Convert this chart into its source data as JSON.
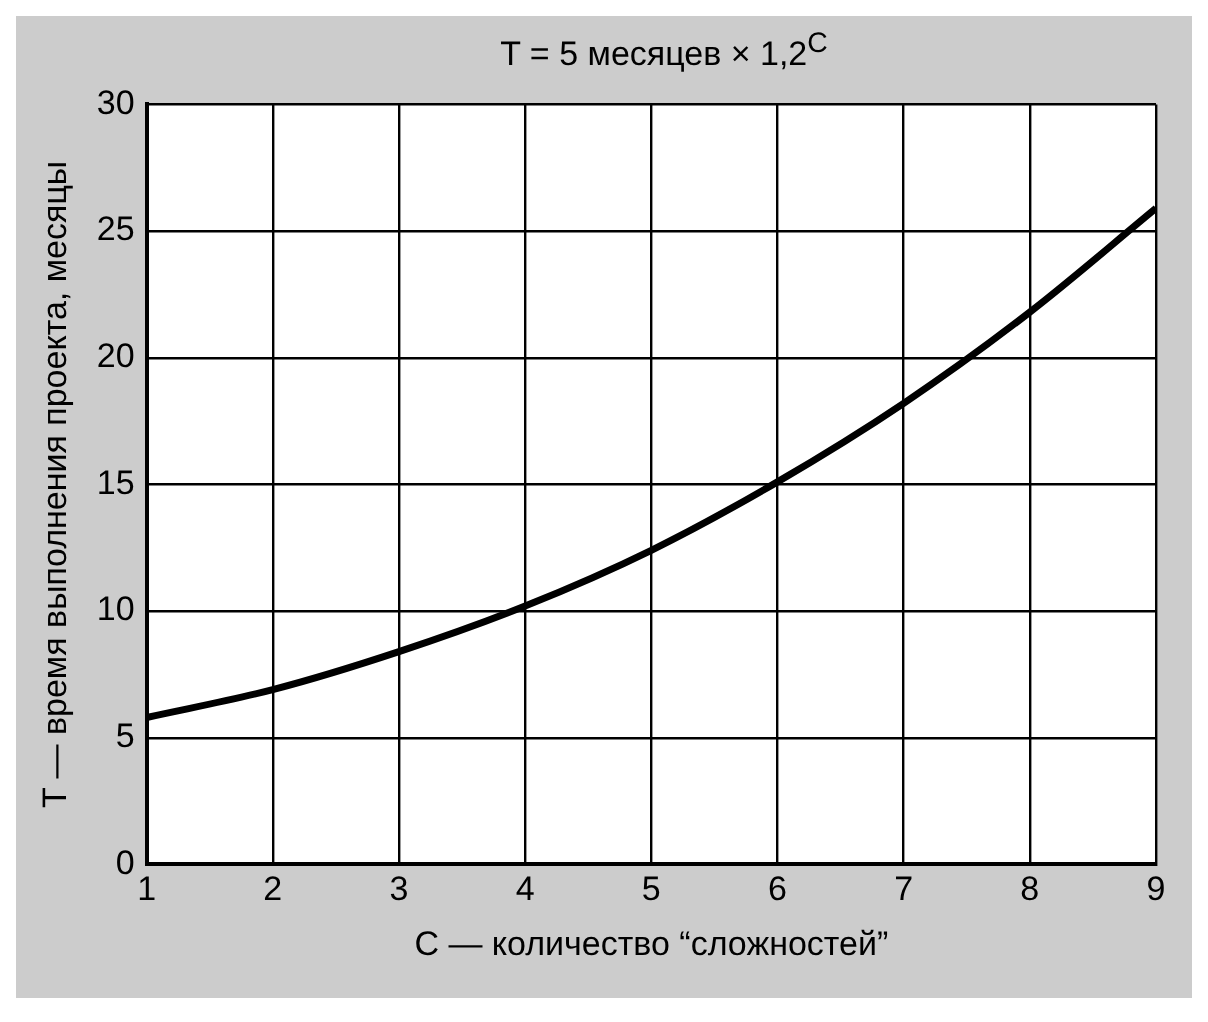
{
  "chart_data": {
    "type": "line",
    "title": "T = 5 месяцев × 1,2$^{C}$",
    "xlabel": "C — количество “сложностей”",
    "ylabel": "T — время выполнения проекта, месяцы",
    "x": [
      1,
      2,
      3,
      4,
      5,
      6,
      7,
      8,
      9
    ],
    "series": [
      {
        "color": "#000000",
        "values": [
          5.8,
          6.9,
          8.4,
          10.2,
          12.4,
          15.1,
          18.2,
          21.8,
          25.9
        ]
      }
    ],
    "xlim": [
      1,
      9
    ],
    "xticks": [
      1,
      2,
      3,
      4,
      5,
      6,
      7,
      8,
      9
    ],
    "ylim": [
      0,
      30
    ],
    "yticks": [
      0,
      5,
      10,
      15,
      20,
      25,
      30
    ],
    "grid": true,
    "legend": false,
    "marker": "none",
    "line_style": "solid"
  }
}
